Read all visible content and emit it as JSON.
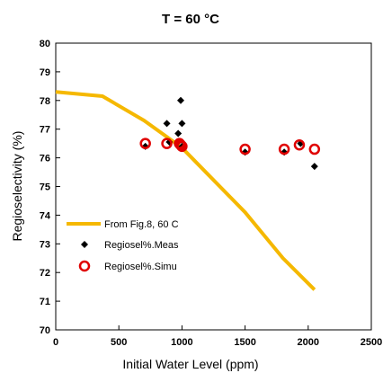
{
  "chart_data": {
    "type": "scatter",
    "title": "T = 60 °C",
    "xlabel": "Initial Water Level (ppm)",
    "ylabel": "Regioselectivity (%)",
    "xlim": [
      0,
      2500
    ],
    "ylim": [
      70,
      80
    ],
    "xticks": [
      "0",
      "500",
      "1000",
      "1500",
      "2000",
      "2500"
    ],
    "yticks": [
      "70",
      "71",
      "72",
      "73",
      "74",
      "75",
      "76",
      "77",
      "78",
      "79",
      "80"
    ],
    "grid": false,
    "legend_position": "bottom-left",
    "series": [
      {
        "name": "From Fig.8, 60 C",
        "kind": "line",
        "color": "#f5b800",
        "x": [
          0,
          370,
          700,
          1000,
          1500,
          1800,
          2050
        ],
        "y": [
          78.3,
          78.15,
          77.3,
          76.35,
          74.1,
          72.5,
          71.4
        ]
      },
      {
        "name": "Regiosel%.Meas",
        "kind": "marker-diamond",
        "color": "#000000",
        "x": [
          710,
          880,
          900,
          970,
          990,
          1000,
          1000,
          1500,
          1810,
          1940,
          2050
        ],
        "y": [
          76.4,
          77.2,
          76.55,
          76.85,
          78.0,
          77.2,
          76.4,
          76.2,
          76.2,
          76.5,
          75.7
        ]
      },
      {
        "name": "Regiosel%.Simu",
        "kind": "marker-circle",
        "color": "#e00000",
        "x": [
          710,
          880,
          980,
          990,
          1000,
          1500,
          1810,
          1930,
          2050
        ],
        "y": [
          76.5,
          76.5,
          76.5,
          76.45,
          76.4,
          76.3,
          76.3,
          76.45,
          76.3
        ]
      }
    ]
  }
}
